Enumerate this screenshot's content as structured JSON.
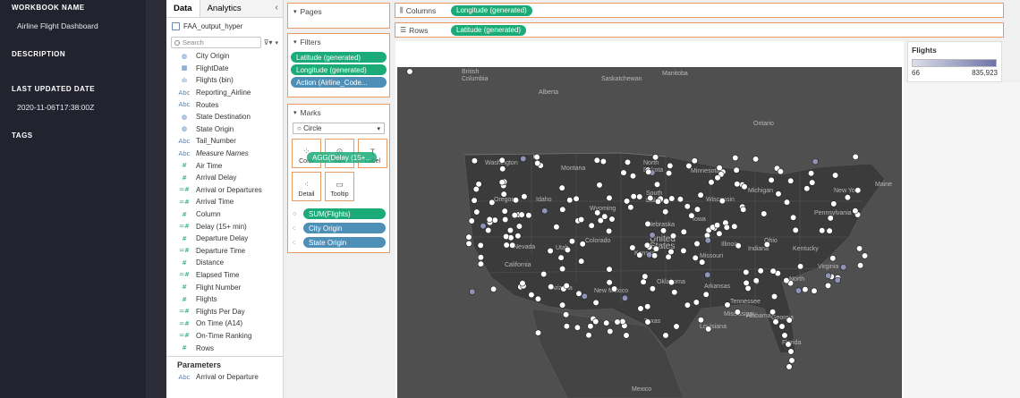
{
  "info": {
    "workbook_name_heading": "WORKBOOK NAME",
    "workbook_name": "Airline Flight Dashboard",
    "description_heading": "DESCRIPTION",
    "last_updated_heading": "LAST UPDATED DATE",
    "last_updated": "2020-11-06T17:38:00Z",
    "tags_heading": "TAGS"
  },
  "data_pane": {
    "tabs": [
      "Data",
      "Analytics"
    ],
    "collapse_icon": "chevron-left-icon",
    "datasource": "FAA_output_hyper",
    "search_placeholder": "Search",
    "fields": [
      {
        "label": "City Origin",
        "type": "globe",
        "kind": "dim"
      },
      {
        "label": "FlightDate",
        "type": "calendar",
        "kind": "dim"
      },
      {
        "label": "Flights (bin)",
        "type": "bin",
        "kind": "dim"
      },
      {
        "label": "Reporting_Airline",
        "type": "abc",
        "kind": "dim"
      },
      {
        "label": "Routes",
        "type": "abc",
        "kind": "dim"
      },
      {
        "label": "State Destination",
        "type": "globe",
        "kind": "dim"
      },
      {
        "label": "State Origin",
        "type": "globe",
        "kind": "dim"
      },
      {
        "label": "Tail_Number",
        "type": "abc",
        "kind": "dim"
      },
      {
        "label": "Measure Names",
        "type": "abc",
        "kind": "dim",
        "italic": true
      },
      {
        "label": "Air Time",
        "type": "hash",
        "kind": "measure"
      },
      {
        "label": "Arrival Delay",
        "type": "hash",
        "kind": "measure"
      },
      {
        "label": "Arrival or Departures",
        "type": "calc",
        "kind": "measure"
      },
      {
        "label": "Arrival Time",
        "type": "calc",
        "kind": "measure"
      },
      {
        "label": "Column",
        "type": "hash",
        "kind": "measure"
      },
      {
        "label": "Delay (15+ min)",
        "type": "calc",
        "kind": "measure"
      },
      {
        "label": "Departure Delay",
        "type": "hash",
        "kind": "measure"
      },
      {
        "label": "Departure Time",
        "type": "calc",
        "kind": "measure"
      },
      {
        "label": "Distance",
        "type": "hash",
        "kind": "measure"
      },
      {
        "label": "Elapsed Time",
        "type": "calc",
        "kind": "measure"
      },
      {
        "label": "Flight Number",
        "type": "hash",
        "kind": "measure"
      },
      {
        "label": "Flights",
        "type": "hash",
        "kind": "measure"
      },
      {
        "label": "Flights Per Day",
        "type": "calc",
        "kind": "measure"
      },
      {
        "label": "On Time (A14)",
        "type": "calc",
        "kind": "measure"
      },
      {
        "label": "On-Time Ranking",
        "type": "calc",
        "kind": "measure"
      },
      {
        "label": "Rows",
        "type": "hash",
        "kind": "measure"
      }
    ],
    "parameters_heading": "Parameters",
    "parameters": [
      {
        "label": "Arrival or Departure",
        "type": "abc"
      }
    ]
  },
  "shelves": {
    "pages_label": "Pages",
    "filters_label": "Filters",
    "filters": [
      {
        "label": "Latitude (generated)",
        "color": "green"
      },
      {
        "label": "Longitude (generated)",
        "color": "green"
      },
      {
        "label": "Action (Airline_Code...",
        "color": "blue"
      }
    ],
    "marks_label": "Marks",
    "mark_type": "Circle",
    "mark_buttons": [
      "Color",
      "Size",
      "Label",
      "Detail",
      "Tooltip"
    ],
    "drag_pill": "AGG(Delay (15+...",
    "marks": [
      {
        "label": "SUM(Flights)",
        "color": "green",
        "icon": "color-icon"
      },
      {
        "label": "City Origin",
        "color": "blue",
        "icon": "detail-icon"
      },
      {
        "label": "State Origin",
        "color": "blue",
        "icon": "detail-icon"
      }
    ]
  },
  "columns": {
    "label": "Columns",
    "pill": "Longitude (generated)"
  },
  "rows": {
    "label": "Rows",
    "pill": "Latitude (generated)"
  },
  "legend": {
    "title": "Flights",
    "min": "66",
    "max": "835,923"
  },
  "map_labels": [
    "British\nColumbia",
    "Alberta",
    "Saskatchewan",
    "Manitoba",
    "Ontario",
    "Washington",
    "Montana",
    "North\nDakota",
    "Minnesota",
    "South\nDakota",
    "Oregon",
    "Idaho",
    "Wyoming",
    "Iowa",
    "Nevada",
    "United\nStates",
    "Utah",
    "Kansas",
    "Missouri",
    "Kentucky",
    "California",
    "New Mexico",
    "Arkansas",
    "Tennessee",
    "North",
    "Maine",
    "Texas",
    "Arizona",
    "Nebraska",
    "Illinois",
    "Indiana",
    "Ohio",
    "Michigan",
    "Wisconsin",
    "Colorado",
    "Oklahoma",
    "Mississippi",
    "Alabama",
    "Georgia",
    "Louisiana",
    "Florida",
    "Pennsylvania",
    "New York",
    "Virginia",
    "Mexico"
  ],
  "colors": {
    "map_bg": "#4f4f4f",
    "dot": "#ffffff",
    "dot_dark": "#8f93b8",
    "accent_green": "#1bab78",
    "accent_blue": "#4e8fb8",
    "panel_dark": "#22232e"
  }
}
